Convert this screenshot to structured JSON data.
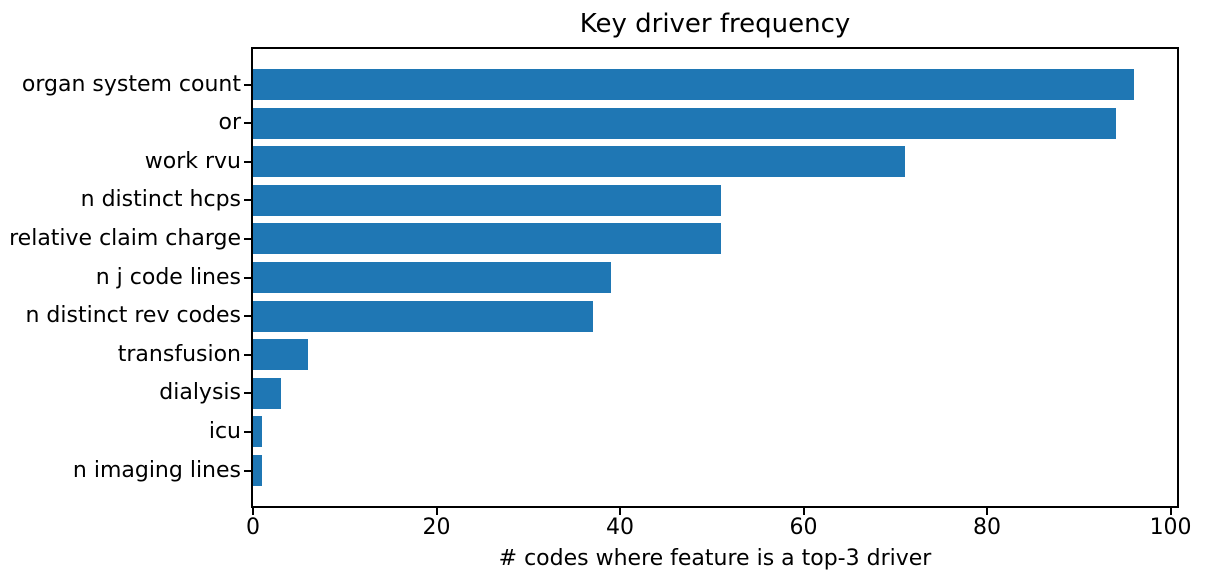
{
  "chart_data": {
    "type": "bar",
    "orientation": "horizontal",
    "title": "Key driver frequency",
    "xlabel": "# codes where feature is a top-3 driver",
    "ylabel": "",
    "categories": [
      "organ system count",
      "or",
      "work rvu",
      "n distinct hcps",
      "relative claim charge",
      "n j code lines",
      "n distinct rev codes",
      "transfusion",
      "dialysis",
      "icu",
      "n imaging lines"
    ],
    "values": [
      96,
      94,
      71,
      51,
      51,
      39,
      37,
      6,
      3,
      1,
      1
    ],
    "xticks": [
      0,
      20,
      40,
      60,
      80,
      100
    ],
    "xlim": [
      0,
      100.7
    ],
    "grid": false,
    "legend": "none",
    "bar_color": "#1f77b4",
    "axis_color": "#000000",
    "text_color": "#000000",
    "background_color": "#ffffff"
  }
}
